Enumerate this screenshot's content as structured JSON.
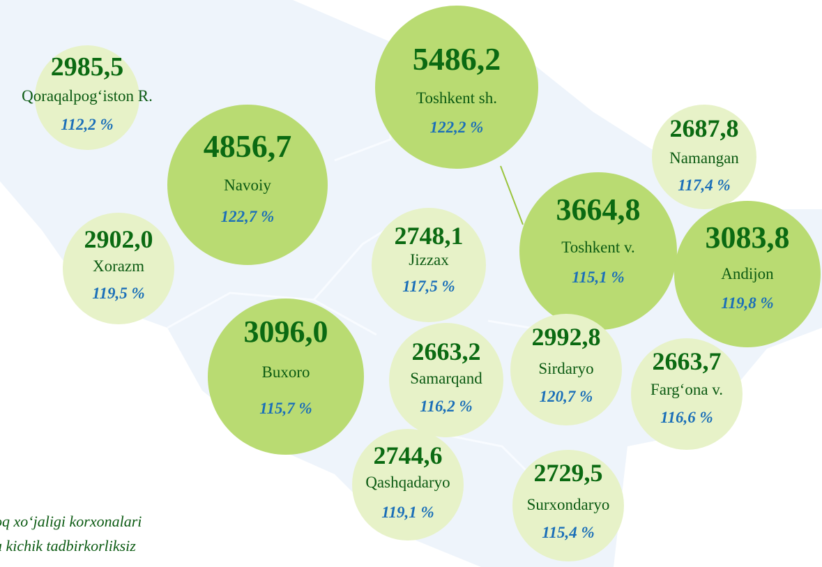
{
  "regions": [
    {
      "name": "Qoraqalpog‘iston R.",
      "value": "2985,5",
      "percent": "112,2 %"
    },
    {
      "name": "Toshkent sh.",
      "value": "5486,2",
      "percent": "122,2 %"
    },
    {
      "name": "Navoiy",
      "value": "4856,7",
      "percent": "122,7 %"
    },
    {
      "name": "Namangan",
      "value": "2687,8",
      "percent": "117,4 %"
    },
    {
      "name": "Xorazm",
      "value": "2902,0",
      "percent": "119,5 %"
    },
    {
      "name": "Jizzax",
      "value": "2748,1",
      "percent": "117,5 %"
    },
    {
      "name": "Toshkent v.",
      "value": "3664,8",
      "percent": "115,1 %"
    },
    {
      "name": "Andijon",
      "value": "3083,8",
      "percent": "119,8 %"
    },
    {
      "name": "Buxoro",
      "value": "3096,0",
      "percent": "115,7 %"
    },
    {
      "name": "Samarqand",
      "value": "2663,2",
      "percent": "116,2 %"
    },
    {
      "name": "Sirdaryo",
      "value": "2992,8",
      "percent": "120,7 %"
    },
    {
      "name": "Farg‘ona v.",
      "value": "2663,7",
      "percent": "116,6 %"
    },
    {
      "name": "Qashqadaryo",
      "value": "2744,6",
      "percent": "119,1 %"
    },
    {
      "name": "Surxondaryo",
      "value": "2729,5",
      "percent": "115,4 %"
    }
  ],
  "footnote": [
    "oq xo‘jaligi korxonalari",
    "a kichik tadbirkorliksiz"
  ]
}
